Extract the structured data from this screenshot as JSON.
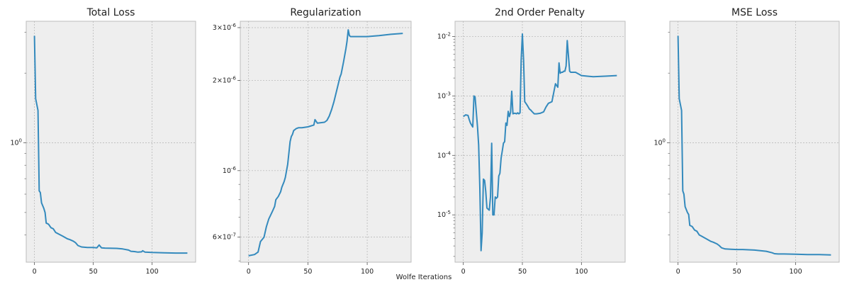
{
  "figure": {
    "xlabel": "Wolfe Iterations",
    "line_color": "#348abd",
    "panel_bg": "#eeeeee",
    "grid_color": "#b2b2b2"
  },
  "chart_data": [
    {
      "type": "line",
      "title": "Total Loss",
      "xlabel": "",
      "ylabel": "",
      "yscale": "log",
      "xlim": [
        -7,
        137
      ],
      "ylim": [
        0.305,
        3.35
      ],
      "xticks": [
        0,
        50,
        100
      ],
      "xtick_labels": [
        "0",
        "50",
        "100"
      ],
      "yticks": [
        1.0
      ],
      "ytick_labels": [
        "10^0"
      ],
      "grid": true,
      "series": [
        {
          "x": [
            0,
            1,
            3,
            4,
            5,
            6,
            8,
            9,
            10,
            12,
            14,
            16,
            18,
            20,
            24,
            28,
            30,
            33,
            35,
            37,
            40,
            45,
            50,
            53,
            55,
            57,
            60,
            70,
            75,
            80,
            82,
            85,
            88,
            91,
            92,
            94,
            100,
            110,
            120,
            130
          ],
          "y": [
            2.9,
            1.55,
            1.38,
            0.62,
            0.61,
            0.55,
            0.52,
            0.5,
            0.45,
            0.445,
            0.43,
            0.425,
            0.41,
            0.405,
            0.395,
            0.385,
            0.382,
            0.376,
            0.37,
            0.36,
            0.355,
            0.353,
            0.353,
            0.352,
            0.362,
            0.352,
            0.351,
            0.35,
            0.348,
            0.344,
            0.34,
            0.339,
            0.337,
            0.338,
            0.342,
            0.337,
            0.336,
            0.335,
            0.334,
            0.334
          ]
        }
      ]
    },
    {
      "type": "line",
      "title": "Regularization",
      "xlabel": "",
      "ylabel": "",
      "yscale": "log",
      "xlim": [
        -7,
        137
      ],
      "ylim": [
        4.95e-07,
        3.15e-06
      ],
      "xticks": [
        0,
        50,
        100
      ],
      "xtick_labels": [
        "0",
        "50",
        "100"
      ],
      "yticks": [
        6e-07,
        1e-06,
        2e-06,
        3e-06
      ],
      "ytick_labels": [
        "6×10^-7",
        "10^-6",
        "2×10^-6",
        "3×10^-6"
      ],
      "grid": true,
      "series": [
        {
          "x": [
            0,
            5,
            8,
            10,
            13,
            15,
            17,
            20,
            22,
            23,
            25,
            27,
            28,
            30,
            31,
            33,
            35,
            36,
            37,
            38,
            40,
            42,
            45,
            50,
            55,
            56,
            58,
            64,
            66,
            68,
            70,
            72,
            75,
            77,
            78,
            80,
            82,
            83,
            84,
            85,
            86,
            90,
            100,
            110,
            120,
            130
          ],
          "y": [
            5.2e-07,
            5.25e-07,
            5.35e-07,
            5.8e-07,
            6e-07,
            6.5e-07,
            6.9e-07,
            7.3e-07,
            7.6e-07,
            8e-07,
            8.2e-07,
            8.5e-07,
            8.8e-07,
            9.2e-07,
            9.5e-07,
            1.05e-06,
            1.25e-06,
            1.3e-06,
            1.32e-06,
            1.36e-06,
            1.38e-06,
            1.39e-06,
            1.39e-06,
            1.4e-06,
            1.42e-06,
            1.48e-06,
            1.44e-06,
            1.45e-06,
            1.47e-06,
            1.52e-06,
            1.6e-06,
            1.7e-06,
            1.9e-06,
            2.05e-06,
            2.1e-06,
            2.3e-06,
            2.55e-06,
            2.7e-06,
            2.95e-06,
            2.82e-06,
            2.8e-06,
            2.8e-06,
            2.8e-06,
            2.82e-06,
            2.85e-06,
            2.87e-06
          ]
        }
      ]
    },
    {
      "type": "line",
      "title": "2nd Order Penalty",
      "xlabel": "",
      "ylabel": "",
      "yscale": "log",
      "xlim": [
        -7,
        137
      ],
      "ylim": [
        1.6e-06,
        0.018
      ],
      "xticks": [
        0,
        50,
        100
      ],
      "xtick_labels": [
        "0",
        "50",
        "100"
      ],
      "yticks": [
        1e-05,
        0.0001,
        0.001,
        0.01
      ],
      "ytick_labels": [
        "10^-5",
        "10^-4",
        "10^-3",
        "10^-2"
      ],
      "grid": true,
      "series": [
        {
          "x": [
            0,
            2,
            4,
            5,
            6,
            8,
            9,
            10,
            12,
            13,
            14,
            15,
            16,
            17,
            18,
            19,
            20,
            21,
            22,
            23,
            24,
            25,
            26,
            27,
            28,
            29,
            30,
            31,
            32,
            33,
            34,
            35,
            36,
            37,
            38,
            39,
            40,
            41,
            42,
            43,
            44,
            45,
            46,
            47,
            48,
            49,
            50,
            51,
            52,
            53,
            54,
            55,
            56,
            57,
            58,
            60,
            62,
            65,
            68,
            70,
            72,
            75,
            78,
            80,
            81,
            82,
            83,
            84,
            85,
            86,
            87,
            88,
            90,
            91,
            92,
            93,
            95,
            100,
            105,
            110,
            120,
            130
          ],
          "y": [
            0.00045,
            0.00048,
            0.00047,
            0.0004,
            0.00035,
            0.0003,
            0.001,
            0.00095,
            0.0003,
            0.00015,
            2.8e-05,
            2.5e-06,
            5e-06,
            4e-05,
            3.8e-05,
            2.5e-05,
            1.3e-05,
            1.25e-05,
            1.2e-05,
            2e-05,
            0.00016,
            1e-05,
            1e-05,
            2e-05,
            1.9e-05,
            2e-05,
            4.5e-05,
            5e-05,
            9e-05,
            0.00012,
            0.00016,
            0.00017,
            0.00035,
            0.00032,
            0.00055,
            0.00045,
            0.00053,
            0.0012,
            0.0005,
            0.00051,
            0.00051,
            0.0005,
            0.00052,
            0.0005,
            0.00052,
            0.004,
            0.011,
            0.004,
            0.0008,
            0.00075,
            0.0007,
            0.00065,
            0.0006,
            0.00058,
            0.00055,
            0.0005,
            0.0005,
            0.00051,
            0.00054,
            0.00065,
            0.00075,
            0.0008,
            0.0016,
            0.0014,
            0.0036,
            0.0024,
            0.0025,
            0.0025,
            0.0026,
            0.0026,
            0.0032,
            0.0085,
            0.0026,
            0.0025,
            0.0025,
            0.0025,
            0.0025,
            0.0022,
            0.00215,
            0.0021,
            0.00215,
            0.0022
          ]
        }
      ]
    },
    {
      "type": "line",
      "title": "MSE Loss",
      "xlabel": "",
      "ylabel": "",
      "yscale": "log",
      "xlim": [
        -7,
        137
      ],
      "ylim": [
        0.305,
        3.35
      ],
      "xticks": [
        0,
        50,
        100
      ],
      "xtick_labels": [
        "0",
        "50",
        "100"
      ],
      "yticks": [
        1.0
      ],
      "ytick_labels": [
        "10^0"
      ],
      "grid": true,
      "series": [
        {
          "x": [
            0,
            1,
            3,
            4,
            5,
            6,
            8,
            9,
            10,
            12,
            14,
            16,
            18,
            20,
            24,
            28,
            30,
            33,
            35,
            37,
            40,
            45,
            50,
            55,
            60,
            65,
            70,
            75,
            80,
            82,
            85,
            90,
            100,
            110,
            120,
            130
          ],
          "y": [
            2.9,
            1.55,
            1.38,
            0.62,
            0.6,
            0.53,
            0.5,
            0.49,
            0.44,
            0.435,
            0.42,
            0.415,
            0.4,
            0.395,
            0.385,
            0.375,
            0.372,
            0.366,
            0.36,
            0.352,
            0.348,
            0.347,
            0.346,
            0.346,
            0.345,
            0.344,
            0.342,
            0.34,
            0.335,
            0.332,
            0.331,
            0.331,
            0.33,
            0.329,
            0.329,
            0.328
          ]
        }
      ]
    }
  ]
}
